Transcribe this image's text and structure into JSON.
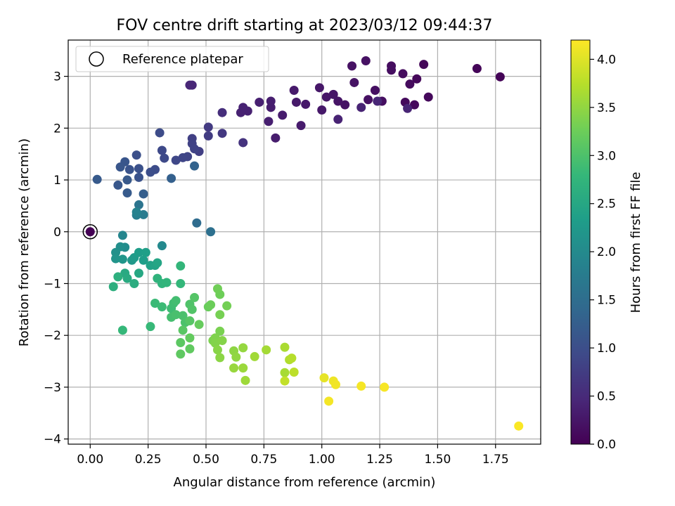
{
  "chart_data": {
    "type": "scatter",
    "title": "FOV centre drift starting at 2023/03/12 09:44:37",
    "xlabel": "Angular distance from reference (arcmin)",
    "ylabel": "Rotation from reference (arcmin)",
    "xlim": [
      -0.095,
      1.945
    ],
    "ylim": [
      -4.1,
      3.7
    ],
    "xticks": [
      "0.00",
      "0.25",
      "0.50",
      "0.75",
      "1.00",
      "1.25",
      "1.50",
      "1.75"
    ],
    "yticks": [
      "−4",
      "−3",
      "−2",
      "−1",
      "0",
      "1",
      "2",
      "3"
    ],
    "grid": true,
    "legend": {
      "position": "top-left",
      "label": "Reference platepar",
      "marker": "open-circle"
    },
    "reference_point": {
      "x": 0.0,
      "y": 0.0
    },
    "colorbar": {
      "label": "Hours from first FF file",
      "min": 0.0,
      "max": 4.2,
      "ticks": [
        "0.0",
        "0.5",
        "1.0",
        "1.5",
        "2.0",
        "2.5",
        "3.0",
        "3.5",
        "4.0"
      ],
      "colormap": "viridis"
    },
    "points": [
      [
        0.0,
        0.0,
        0.0
      ],
      [
        1.77,
        2.99,
        0.04
      ],
      [
        1.67,
        3.15,
        0.05
      ],
      [
        1.44,
        3.23,
        0.07
      ],
      [
        1.41,
        2.95,
        0.08
      ],
      [
        1.46,
        2.6,
        0.09
      ],
      [
        1.4,
        2.45,
        0.1
      ],
      [
        1.36,
        2.5,
        0.11
      ],
      [
        1.38,
        2.85,
        0.12
      ],
      [
        1.35,
        3.05,
        0.13
      ],
      [
        1.3,
        3.2,
        0.14
      ],
      [
        1.3,
        3.12,
        0.15
      ],
      [
        1.26,
        2.52,
        0.16
      ],
      [
        1.23,
        2.73,
        0.17
      ],
      [
        1.2,
        2.55,
        0.18
      ],
      [
        1.19,
        3.3,
        0.19
      ],
      [
        1.13,
        3.2,
        0.2
      ],
      [
        1.14,
        2.88,
        0.21
      ],
      [
        1.1,
        2.45,
        0.22
      ],
      [
        1.07,
        2.52,
        0.23
      ],
      [
        1.05,
        2.65,
        0.24
      ],
      [
        1.02,
        2.6,
        0.25
      ],
      [
        0.99,
        2.78,
        0.26
      ],
      [
        1.0,
        2.35,
        0.27
      ],
      [
        0.93,
        2.46,
        0.28
      ],
      [
        0.89,
        2.5,
        0.29
      ],
      [
        0.88,
        2.73,
        0.3
      ],
      [
        0.91,
        2.05,
        0.31
      ],
      [
        0.83,
        2.25,
        0.32
      ],
      [
        0.8,
        1.81,
        0.33
      ],
      [
        0.78,
        2.4,
        0.34
      ],
      [
        0.78,
        2.52,
        0.35
      ],
      [
        0.77,
        2.13,
        0.36
      ],
      [
        0.73,
        2.5,
        0.37
      ],
      [
        0.68,
        2.33,
        0.38
      ],
      [
        0.65,
        2.3,
        0.39
      ],
      [
        0.66,
        2.4,
        0.4
      ],
      [
        1.07,
        2.17,
        0.41
      ],
      [
        1.17,
        2.4,
        0.42
      ],
      [
        1.37,
        2.38,
        0.43
      ],
      [
        1.24,
        2.52,
        0.44
      ],
      [
        0.43,
        2.83,
        0.45
      ],
      [
        0.44,
        2.83,
        0.46
      ],
      [
        0.57,
        2.3,
        0.55
      ],
      [
        0.66,
        1.72,
        0.62
      ],
      [
        0.57,
        1.9,
        0.68
      ],
      [
        0.51,
        2.02,
        0.72
      ],
      [
        0.51,
        1.85,
        0.74
      ],
      [
        0.47,
        1.55,
        0.78
      ],
      [
        0.44,
        1.8,
        0.8
      ],
      [
        0.44,
        1.7,
        0.82
      ],
      [
        0.45,
        1.6,
        0.84
      ],
      [
        0.42,
        1.45,
        0.86
      ],
      [
        0.4,
        1.43,
        0.88
      ],
      [
        0.37,
        1.38,
        0.9
      ],
      [
        0.31,
        1.57,
        0.92
      ],
      [
        0.32,
        1.42,
        0.94
      ],
      [
        0.3,
        1.91,
        0.96
      ],
      [
        0.28,
        1.2,
        0.98
      ],
      [
        0.26,
        1.15,
        1.0
      ],
      [
        0.2,
        1.48,
        1.02
      ],
      [
        0.21,
        1.22,
        1.04
      ],
      [
        0.21,
        1.05,
        1.06
      ],
      [
        0.17,
        1.2,
        1.08
      ],
      [
        0.15,
        1.35,
        1.1
      ],
      [
        0.13,
        1.25,
        1.12
      ],
      [
        0.12,
        0.9,
        1.14
      ],
      [
        0.16,
        1.0,
        1.16
      ],
      [
        0.03,
        1.01,
        1.18
      ],
      [
        0.16,
        0.75,
        1.2
      ],
      [
        0.23,
        0.73,
        1.24
      ],
      [
        0.35,
        1.03,
        1.28
      ],
      [
        0.45,
        1.27,
        1.32
      ],
      [
        0.46,
        0.17,
        1.48
      ],
      [
        0.52,
        0.0,
        1.55
      ],
      [
        0.21,
        0.52,
        1.62
      ],
      [
        0.23,
        0.33,
        1.74
      ],
      [
        0.2,
        0.32,
        1.8
      ],
      [
        0.2,
        0.38,
        1.86
      ],
      [
        0.14,
        -0.07,
        1.92
      ],
      [
        0.31,
        -0.27,
        1.98
      ],
      [
        0.15,
        -0.3,
        2.04
      ],
      [
        0.13,
        -0.29,
        2.08
      ],
      [
        0.11,
        -0.4,
        2.12
      ],
      [
        0.11,
        -0.52,
        2.16
      ],
      [
        0.14,
        -0.53,
        2.2
      ],
      [
        0.18,
        -0.55,
        2.24
      ],
      [
        0.19,
        -0.5,
        2.28
      ],
      [
        0.21,
        -0.4,
        2.32
      ],
      [
        0.23,
        -0.55,
        2.34
      ],
      [
        0.24,
        -0.4,
        2.36
      ],
      [
        0.26,
        -0.65,
        2.4
      ],
      [
        0.28,
        -0.65,
        2.42
      ],
      [
        0.29,
        -0.6,
        2.46
      ],
      [
        0.21,
        -0.8,
        2.5
      ],
      [
        0.15,
        -0.8,
        2.54
      ],
      [
        0.16,
        -0.9,
        2.56
      ],
      [
        0.19,
        -1.0,
        2.6
      ],
      [
        0.1,
        -1.06,
        2.64
      ],
      [
        0.12,
        -0.87,
        2.66
      ],
      [
        0.29,
        -0.9,
        2.7
      ],
      [
        0.31,
        -1.0,
        2.72
      ],
      [
        0.33,
        -0.98,
        2.74
      ],
      [
        0.39,
        -0.66,
        2.76
      ],
      [
        0.39,
        -1.0,
        2.78
      ],
      [
        0.14,
        -1.9,
        2.8
      ],
      [
        0.26,
        -1.83,
        2.82
      ],
      [
        0.28,
        -1.38,
        2.84
      ],
      [
        0.31,
        -1.45,
        2.86
      ],
      [
        0.35,
        -1.48,
        2.88
      ],
      [
        0.36,
        -1.38,
        2.9
      ],
      [
        0.37,
        -1.33,
        2.92
      ],
      [
        0.35,
        -1.65,
        2.94
      ],
      [
        0.37,
        -1.6,
        2.96
      ],
      [
        0.4,
        -1.62,
        2.98
      ],
      [
        0.41,
        -1.75,
        3.0
      ],
      [
        0.43,
        -1.4,
        3.02
      ],
      [
        0.44,
        -1.5,
        3.04
      ],
      [
        0.45,
        -1.27,
        3.06
      ],
      [
        0.43,
        -1.72,
        3.08
      ],
      [
        0.4,
        -1.9,
        3.1
      ],
      [
        0.39,
        -2.14,
        3.12
      ],
      [
        0.39,
        -2.36,
        3.14
      ],
      [
        0.43,
        -2.26,
        3.16
      ],
      [
        0.43,
        -2.05,
        3.18
      ],
      [
        0.47,
        -1.79,
        3.2
      ],
      [
        0.51,
        -1.45,
        3.22
      ],
      [
        0.52,
        -1.41,
        3.24
      ],
      [
        0.56,
        -1.21,
        3.26
      ],
      [
        0.55,
        -1.1,
        3.28
      ],
      [
        0.59,
        -1.43,
        3.3
      ],
      [
        0.56,
        -1.6,
        3.32
      ],
      [
        0.56,
        -1.92,
        3.34
      ],
      [
        0.53,
        -2.1,
        3.36
      ],
      [
        0.54,
        -2.05,
        3.38
      ],
      [
        0.54,
        -2.15,
        3.4
      ],
      [
        0.57,
        -2.1,
        3.42
      ],
      [
        0.55,
        -2.28,
        3.44
      ],
      [
        0.56,
        -2.43,
        3.46
      ],
      [
        0.62,
        -2.3,
        3.48
      ],
      [
        0.63,
        -2.42,
        3.5
      ],
      [
        0.66,
        -2.24,
        3.52
      ],
      [
        0.62,
        -2.63,
        3.54
      ],
      [
        0.66,
        -2.63,
        3.56
      ],
      [
        0.67,
        -2.87,
        3.58
      ],
      [
        0.71,
        -2.41,
        3.6
      ],
      [
        0.76,
        -2.28,
        3.62
      ],
      [
        0.84,
        -2.72,
        3.64
      ],
      [
        0.84,
        -2.23,
        3.66
      ],
      [
        0.86,
        -2.47,
        3.7
      ],
      [
        0.87,
        -2.44,
        3.74
      ],
      [
        0.88,
        -2.71,
        3.78
      ],
      [
        0.84,
        -2.88,
        3.82
      ],
      [
        1.01,
        -2.82,
        4.05
      ],
      [
        1.05,
        -2.88,
        4.1
      ],
      [
        1.06,
        -2.95,
        4.12
      ],
      [
        1.03,
        -3.27,
        4.14
      ],
      [
        1.17,
        -2.98,
        4.15
      ],
      [
        1.27,
        -3.0,
        4.16
      ],
      [
        1.85,
        -3.75,
        4.18
      ]
    ]
  }
}
